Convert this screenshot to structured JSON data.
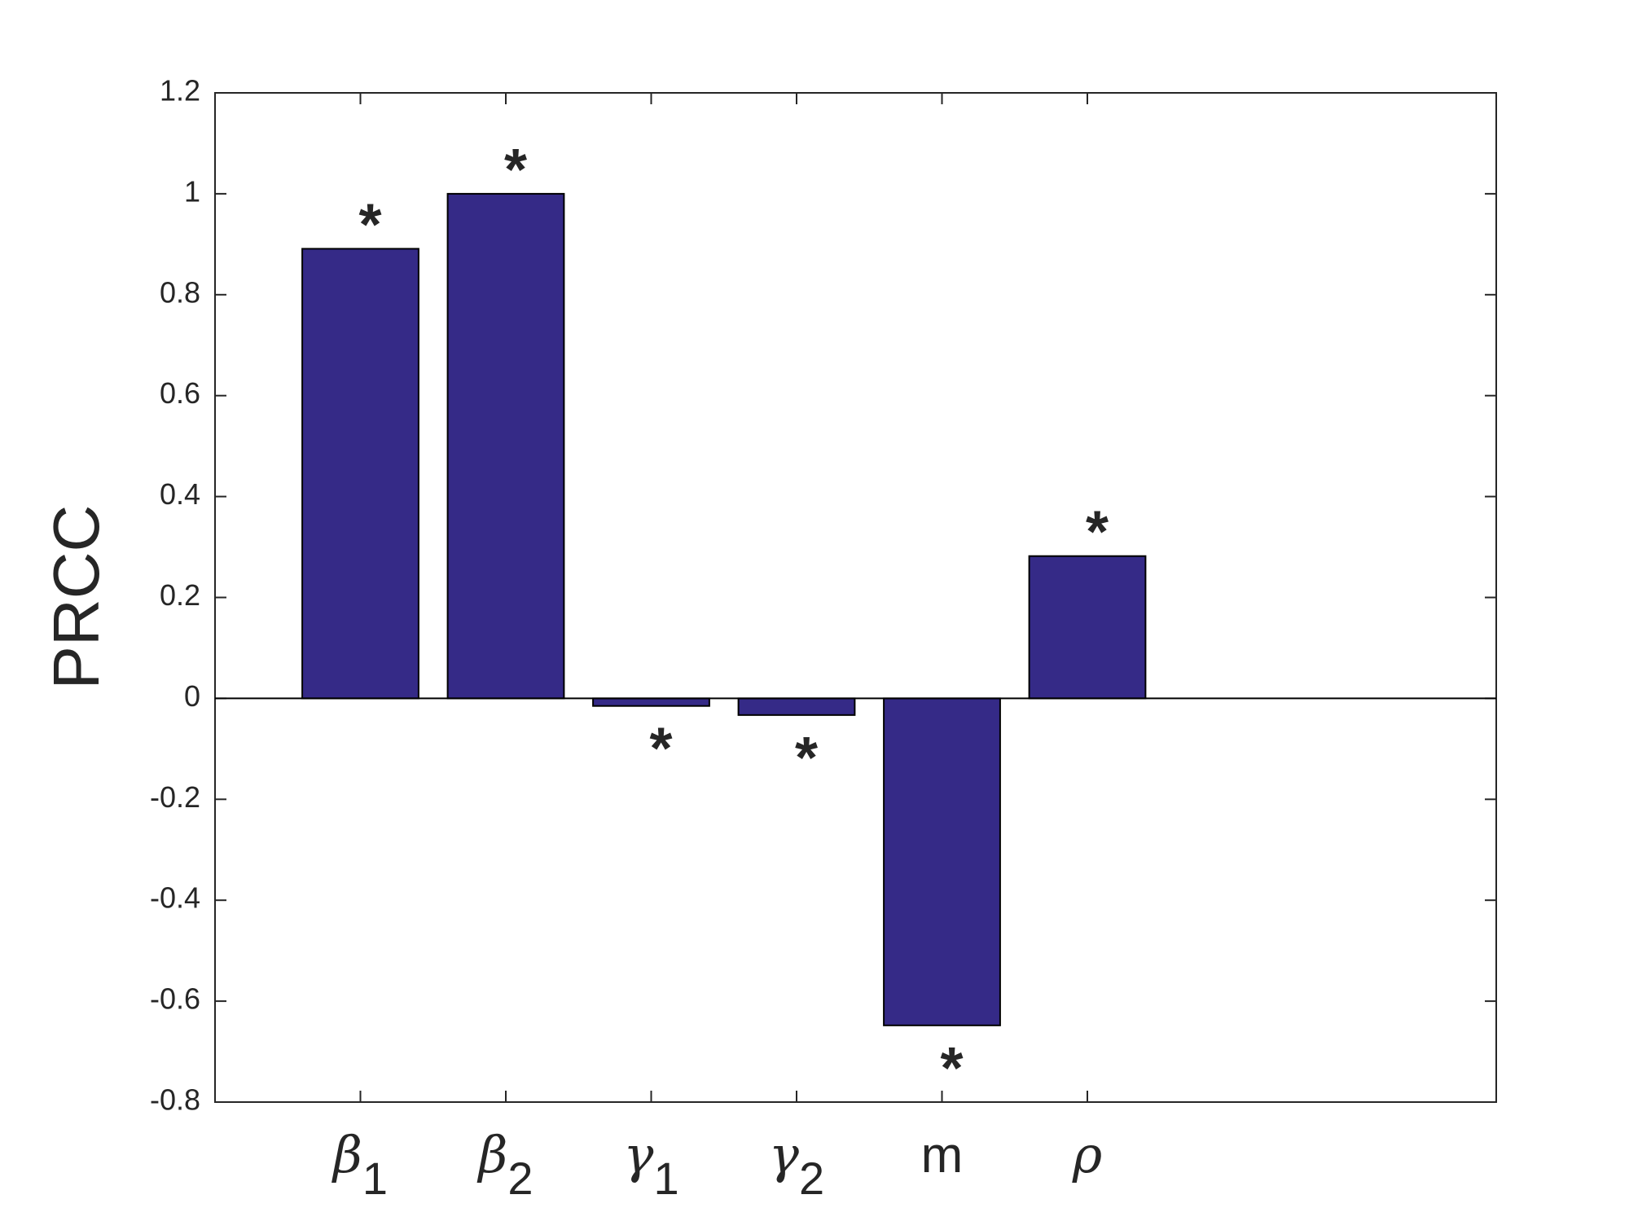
{
  "chart_data": {
    "type": "bar",
    "ylabel": "PRCC",
    "categories": [
      "β1",
      "β2",
      "γ1",
      "γ2",
      "m",
      "ρ"
    ],
    "values": [
      0.891,
      1.0,
      -0.015,
      -0.033,
      -0.648,
      0.282
    ],
    "value_annotations": [
      "*",
      "*",
      "*",
      "*",
      "*",
      "*"
    ],
    "color": "#352a87",
    "ylim": [
      -0.8,
      1.2
    ],
    "yticks": [
      -0.8,
      -0.6,
      -0.4,
      -0.2,
      0,
      0.2,
      0.4,
      0.6,
      0.8,
      1,
      1.2
    ],
    "grid": false
  }
}
